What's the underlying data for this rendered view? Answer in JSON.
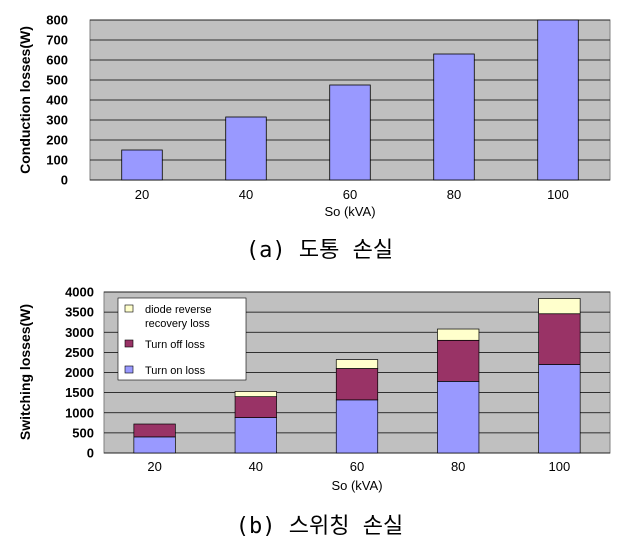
{
  "colors": {
    "plot_bg": "#c0c0c0",
    "grid": "#000000",
    "bar": "#9999ff",
    "bar_stroke": "#000000",
    "turn_on": "#9999ff",
    "turn_off": "#993366",
    "diode": "#ffffcc"
  },
  "captions": {
    "a": "(a) 도통 손실",
    "b": "(b) 스위칭 손실"
  },
  "chart_data": [
    {
      "type": "bar",
      "title": "",
      "categories": [
        "20",
        "40",
        "60",
        "80",
        "100"
      ],
      "values": [
        150,
        315,
        475,
        630,
        800
      ],
      "xlabel": "So (kVA)",
      "ylabel": "Conduction losses(W)",
      "ylim": [
        0,
        800
      ],
      "yticks": [
        "0",
        "100",
        "200",
        "300",
        "400",
        "500",
        "600",
        "700",
        "800"
      ],
      "grid": true,
      "legend": "none"
    },
    {
      "type": "bar",
      "stacked": true,
      "title": "",
      "categories": [
        "20",
        "40",
        "60",
        "80",
        "100"
      ],
      "series": [
        {
          "name": "Turn on loss",
          "values": [
            400,
            880,
            1320,
            1780,
            2200
          ]
        },
        {
          "name": "Turn off loss",
          "values": [
            320,
            520,
            780,
            1020,
            1260
          ]
        },
        {
          "name": "diode reverse recovery loss",
          "values": [
            0,
            130,
            220,
            280,
            380
          ]
        }
      ],
      "legend_entries": [
        {
          "line1": "diode reverse",
          "line2": "recovery loss"
        },
        {
          "line1": "Turn off loss"
        },
        {
          "line1": "Turn on loss"
        }
      ],
      "xlabel": "So (kVA)",
      "ylabel": "Switching losses(W)",
      "ylim": [
        0,
        4000
      ],
      "yticks": [
        "0",
        "500",
        "1000",
        "1500",
        "2000",
        "2500",
        "3000",
        "3500",
        "4000"
      ],
      "grid": true,
      "legend": "top-left"
    }
  ]
}
